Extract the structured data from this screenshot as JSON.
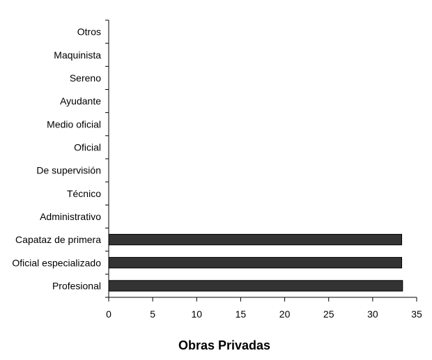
{
  "chart_data": {
    "type": "bar",
    "orientation": "horizontal",
    "categories": [
      "Profesional",
      "Oficial especializado",
      "Capataz de primera",
      "Administrativo",
      "Técnico",
      "De supervisión",
      "Oficial",
      "Medio oficial",
      "Ayudante",
      "Sereno",
      "Maquinista",
      "Otros"
    ],
    "values": [
      33.4,
      33.3,
      33.3,
      0,
      0,
      0,
      0,
      0,
      0,
      0,
      0,
      0
    ],
    "xlabel": "Obras Privadas",
    "ylabel": "",
    "xlim": [
      0,
      35
    ],
    "xticks": [
      0,
      5,
      10,
      15,
      20,
      25,
      30,
      35
    ],
    "grid": false,
    "legend": "none",
    "bar_color": "#333333",
    "bar_border": "#000000"
  }
}
